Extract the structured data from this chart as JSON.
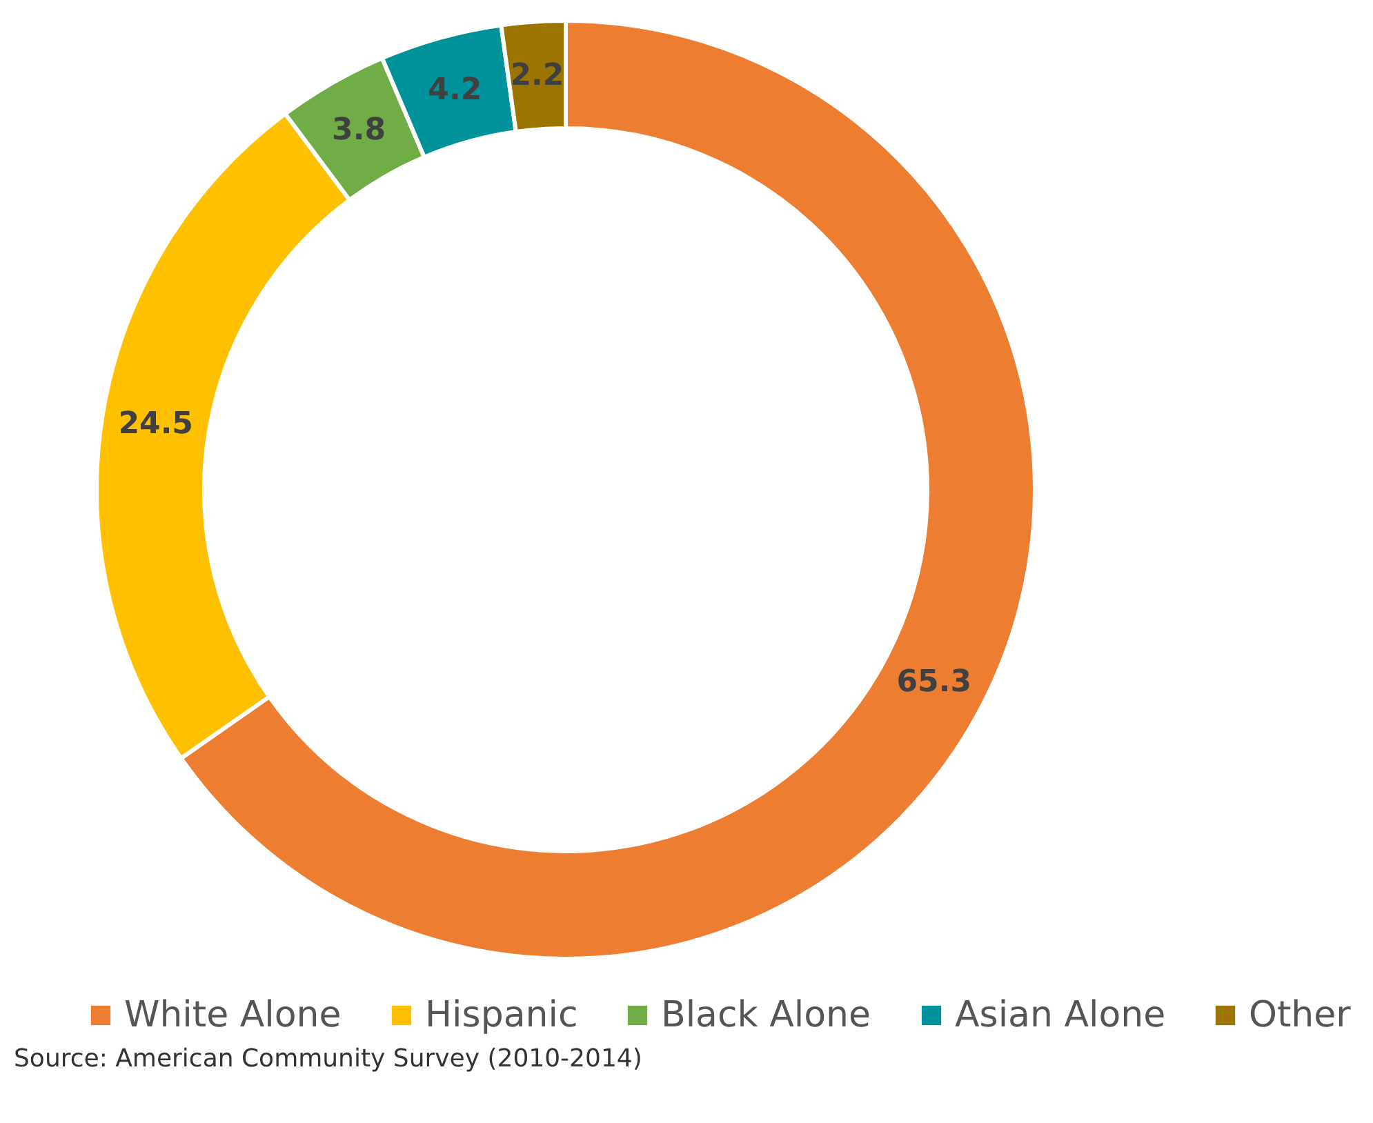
{
  "chart_data": {
    "type": "donut",
    "categories": [
      "White Alone",
      "Hispanic",
      "Black Alone",
      "Asian Alone",
      "Other"
    ],
    "values": [
      65.3,
      24.5,
      3.8,
      4.2,
      2.2
    ],
    "colors": [
      "#ed7d31",
      "#ffc000",
      "#70ad47",
      "#00929b",
      "#9c7400"
    ],
    "data_labels": true,
    "legend": "bottom",
    "annotations": [
      "Source: American Community Survey (2010-2014)"
    ]
  }
}
